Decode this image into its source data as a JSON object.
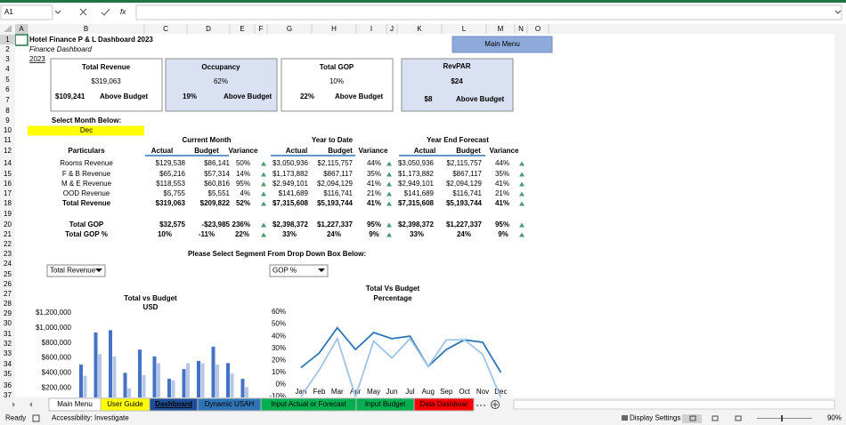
{
  "formula_bar": {
    "name_box": "A1",
    "fx": "fx"
  },
  "columns": [
    "A",
    "B",
    "C",
    "D",
    "E",
    "F",
    "G",
    "H",
    "I",
    "J",
    "K",
    "L",
    "M",
    "N",
    "O"
  ],
  "rows": [
    1,
    2,
    3,
    4,
    5,
    6,
    7,
    8,
    9,
    10,
    11,
    12,
    14,
    15,
    16,
    17,
    18,
    19,
    20,
    21,
    22,
    23,
    24,
    25,
    26,
    27,
    28,
    29,
    30,
    31,
    32,
    33,
    34,
    35,
    36,
    37
  ],
  "header": {
    "title": "Hotel Finance P & L Dashboard 2023",
    "subtitle": "Finance Dashboard",
    "year": "2023"
  },
  "main_menu": "Main Menu",
  "kpis": [
    {
      "title": "Total Revenue",
      "value": "$319,063",
      "sub_value": "$109,241",
      "status": "Above Budget"
    },
    {
      "title": "Occupancy",
      "value": "62%",
      "sub_value": "19%",
      "status": "Above Budget"
    },
    {
      "title": "Total GOP",
      "value": "10%",
      "sub_value": "22%",
      "status": "Above Budget"
    },
    {
      "title": "RevPAR",
      "value": "$24",
      "sub_value": "$8",
      "status": "Above Budget"
    }
  ],
  "month_prompt": "Select Month Below:",
  "month": "Dec",
  "table": {
    "groups": [
      "Current Month",
      "Year to Date",
      "Year End Forecast"
    ],
    "columns": [
      "Particulars",
      "Actual",
      "Budget",
      "Variance",
      "Actual",
      "Budget",
      "Variance",
      "Actual",
      "Budget",
      "Variance"
    ],
    "rows": [
      [
        "Rooms Revenue",
        "$129,538",
        "$86,141",
        "50%",
        "$3,050,936",
        "$2,115,757",
        "44%",
        "$3,050,936",
        "$2,115,757",
        "44%"
      ],
      [
        "F & B Revenue",
        "$65,216",
        "$57,314",
        "14%",
        "$1,173,882",
        "$867,117",
        "35%",
        "$1,173,882",
        "$867,117",
        "35%"
      ],
      [
        "M & E Revenue",
        "$118,553",
        "$60,816",
        "95%",
        "$2,949,101",
        "$2,094,129",
        "41%",
        "$2,949,101",
        "$2,094,129",
        "41%"
      ],
      [
        "OOD Revenue",
        "$5,755",
        "$5,551",
        "4%",
        "$141,689",
        "$116,741",
        "21%",
        "$141,689",
        "$116,741",
        "21%"
      ],
      [
        "Total Revenue",
        "$319,063",
        "$209,822",
        "52%",
        "$7,315,608",
        "$5,193,744",
        "41%",
        "$7,315,608",
        "$5,193,744",
        "41%"
      ],
      [
        "Total GOP",
        "$32,575",
        "-$23,985",
        "236%",
        "$2,398,372",
        "$1,227,337",
        "95%",
        "$2,398,372",
        "$1,227,337",
        "95%"
      ],
      [
        "Total GOP %",
        "10%",
        "-11%",
        "22%",
        "33%",
        "24%",
        "9%",
        "33%",
        "24%",
        "9%"
      ]
    ]
  },
  "segment_prompt": "Please Select Segment From Drop Down Box Below:",
  "dropdowns": [
    "Total Revenue",
    "GOP %"
  ],
  "chart_data": [
    {
      "type": "bar",
      "title": "Total vs Budget",
      "subtitle": "USD",
      "categories": [
        null,
        null,
        null,
        null,
        null,
        null,
        null,
        null,
        null,
        null,
        null,
        null
      ],
      "series": [
        {
          "color": "#4472c4",
          "values": [
            510000,
            940000,
            970000,
            400000,
            710000,
            620000,
            320000,
            450000,
            560000,
            750000,
            530000,
            319063
          ]
        },
        {
          "color": "#b4c7e7",
          "values": [
            360000,
            650000,
            620000,
            190000,
            370000,
            530000,
            300000,
            530000,
            530000,
            510000,
            390000,
            209822
          ]
        }
      ],
      "ylim": [
        0,
        1200000
      ],
      "yticks": [
        {
          "value": 200000,
          "label": "$200,000"
        },
        {
          "value": 400000,
          "label": "$400,000"
        },
        {
          "value": 600000,
          "label": "$600,000"
        },
        {
          "value": 800000,
          "label": "$800,000"
        },
        {
          "value": 1000000,
          "label": "$1,000,000"
        },
        {
          "value": 1200000,
          "label": "$1,200,000"
        }
      ]
    },
    {
      "type": "line",
      "title": "Total Vs Budget",
      "subtitle": "Percentage",
      "categories": [
        "Jan",
        "Feb",
        "Mar",
        "Apr",
        "May",
        "Jun",
        "Jul",
        "Aug",
        "Sep",
        "Oct",
        "Nov",
        "Dec"
      ],
      "series": [
        {
          "color": "#2e75b6",
          "values": [
            14,
            26,
            47,
            29,
            43,
            38,
            40,
            15,
            29,
            37,
            35,
            10
          ]
        },
        {
          "color": "#9dc3e6",
          "values": [
            -10,
            12,
            38,
            -10,
            36,
            22,
            38,
            15,
            37,
            37,
            25,
            -11
          ]
        }
      ],
      "ylim": [
        -10,
        60
      ],
      "yticks": [
        {
          "value": -10,
          "label": "-10%"
        },
        {
          "value": 0,
          "label": "0%"
        },
        {
          "value": 10,
          "label": "10%"
        },
        {
          "value": 20,
          "label": "20%"
        },
        {
          "value": 30,
          "label": "30%"
        },
        {
          "value": 40,
          "label": "40%"
        },
        {
          "value": 50,
          "label": "50%"
        },
        {
          "value": 60,
          "label": "60%"
        }
      ]
    }
  ],
  "sheet_tabs": [
    {
      "name": "Main Menu"
    },
    {
      "name": "User Guide",
      "color": "#ffff00"
    },
    {
      "name": "Dashboard",
      "color": "#1f4e99"
    },
    {
      "name": "Dynamic USAH",
      "color": "#2f75b5"
    },
    {
      "name": "Input Actual or Forecast",
      "color": "#00b050"
    },
    {
      "name": "Input Budget",
      "color": "#00b050"
    },
    {
      "name": "Data Dashboar",
      "color": "#ff0000"
    }
  ],
  "status": {
    "ready": "Ready",
    "accessibility": "Accessibility: Investigate",
    "display": "Display Settings",
    "zoom": "90%"
  }
}
